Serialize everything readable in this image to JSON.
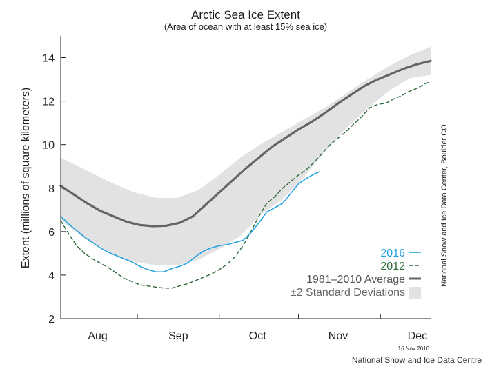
{
  "chart_data": {
    "type": "line",
    "title": "Arctic Sea Ice Extent",
    "subtitle": "(Area of ocean with at least 15% sea ice)",
    "xlabel": "",
    "ylabel": "Extent (millions of square kilometers)",
    "ylim": [
      2,
      15
    ],
    "yticks": [
      2,
      4,
      6,
      8,
      10,
      12,
      14
    ],
    "xlim": [
      0,
      140
    ],
    "month_ticks": [
      29,
      60,
      90,
      121
    ],
    "month_labels": [
      {
        "label": "Aug",
        "x": 14
      },
      {
        "label": "Sep",
        "x": 44.5
      },
      {
        "label": "Oct",
        "x": 74.5
      },
      {
        "label": "Nov",
        "x": 105
      },
      {
        "label": "Dec",
        "x": 135
      }
    ],
    "grid": false,
    "legend_position": "bottom-right",
    "colors": {
      "s2016": "#1d9fe0",
      "s2012": "#2d6a38",
      "average": "#646464",
      "band": "#e2e2e2",
      "axis": "#222222"
    },
    "band": {
      "name": "±2 Standard Deviations",
      "x": [
        0,
        10,
        20,
        28,
        36,
        44,
        52,
        60,
        68,
        76,
        84,
        92,
        100,
        108,
        116,
        124,
        132,
        140
      ],
      "upper": [
        9.4,
        8.8,
        8.2,
        7.8,
        7.55,
        7.55,
        7.9,
        8.6,
        9.4,
        10.05,
        10.6,
        11.15,
        11.7,
        12.35,
        13.0,
        13.6,
        14.1,
        14.5
      ],
      "lower": [
        6.5,
        5.6,
        4.9,
        4.6,
        4.45,
        4.45,
        4.7,
        5.2,
        5.8,
        6.8,
        7.5,
        8.5,
        9.7,
        10.75,
        11.65,
        12.45,
        13.05,
        13.2
      ]
    },
    "series": [
      {
        "name": "1981–2010 Average",
        "key": "average",
        "x": [
          0,
          5,
          10,
          15,
          20,
          25,
          30,
          35,
          40,
          45,
          50,
          55,
          60,
          65,
          70,
          75,
          80,
          85,
          90,
          95,
          100,
          105,
          110,
          115,
          120,
          125,
          130,
          135,
          140
        ],
        "values": [
          8.1,
          7.7,
          7.3,
          6.95,
          6.7,
          6.45,
          6.3,
          6.25,
          6.27,
          6.4,
          6.7,
          7.25,
          7.8,
          8.35,
          8.9,
          9.4,
          9.9,
          10.3,
          10.7,
          11.05,
          11.45,
          11.9,
          12.3,
          12.7,
          13.0,
          13.25,
          13.5,
          13.7,
          13.85
        ]
      },
      {
        "name": "2016",
        "key": "s2016",
        "x": [
          0,
          3,
          6,
          9,
          12,
          15,
          18,
          21,
          24,
          27,
          30,
          33,
          36,
          39,
          42,
          45,
          48,
          51,
          54,
          57,
          60,
          63,
          66,
          69,
          72,
          75,
          78,
          81,
          84,
          87,
          90,
          93,
          96,
          98
        ],
        "values": [
          6.7,
          6.35,
          6.05,
          5.75,
          5.5,
          5.25,
          5.05,
          4.9,
          4.75,
          4.6,
          4.4,
          4.25,
          4.15,
          4.15,
          4.3,
          4.4,
          4.55,
          4.85,
          5.1,
          5.25,
          5.35,
          5.4,
          5.5,
          5.6,
          5.95,
          6.4,
          6.9,
          7.1,
          7.3,
          7.75,
          8.2,
          8.45,
          8.65,
          8.75
        ]
      },
      {
        "name": "2012",
        "key": "s2012",
        "x": [
          0,
          3,
          6,
          9,
          12,
          15,
          18,
          21,
          24,
          27,
          30,
          33,
          36,
          39,
          42,
          45,
          48,
          51,
          54,
          57,
          60,
          63,
          66,
          69,
          72,
          75,
          78,
          81,
          84,
          87,
          90,
          93,
          96,
          99,
          102,
          105,
          108,
          111,
          114,
          117,
          120,
          123,
          126,
          129,
          132,
          135,
          138,
          140
        ],
        "values": [
          6.5,
          5.9,
          5.35,
          5.0,
          4.75,
          4.55,
          4.35,
          4.1,
          3.85,
          3.7,
          3.55,
          3.5,
          3.45,
          3.4,
          3.4,
          3.5,
          3.6,
          3.75,
          3.9,
          4.05,
          4.25,
          4.5,
          4.85,
          5.35,
          6.0,
          6.7,
          7.3,
          7.6,
          8.0,
          8.3,
          8.6,
          8.85,
          9.2,
          9.6,
          10.0,
          10.3,
          10.6,
          10.95,
          11.3,
          11.7,
          11.85,
          11.9,
          12.1,
          12.25,
          12.45,
          12.6,
          12.8,
          12.9
        ]
      }
    ]
  },
  "legend": {
    "s2016": "2016",
    "s2012": "2012",
    "average": "1981–2010 Average",
    "band": "±2 Standard Deviations"
  },
  "credits": {
    "vertical": "National Snow and Ice Data Center, Boulder CO",
    "date": "16 Nov 2016",
    "footer": "National Snow and Ice Data Centre"
  }
}
